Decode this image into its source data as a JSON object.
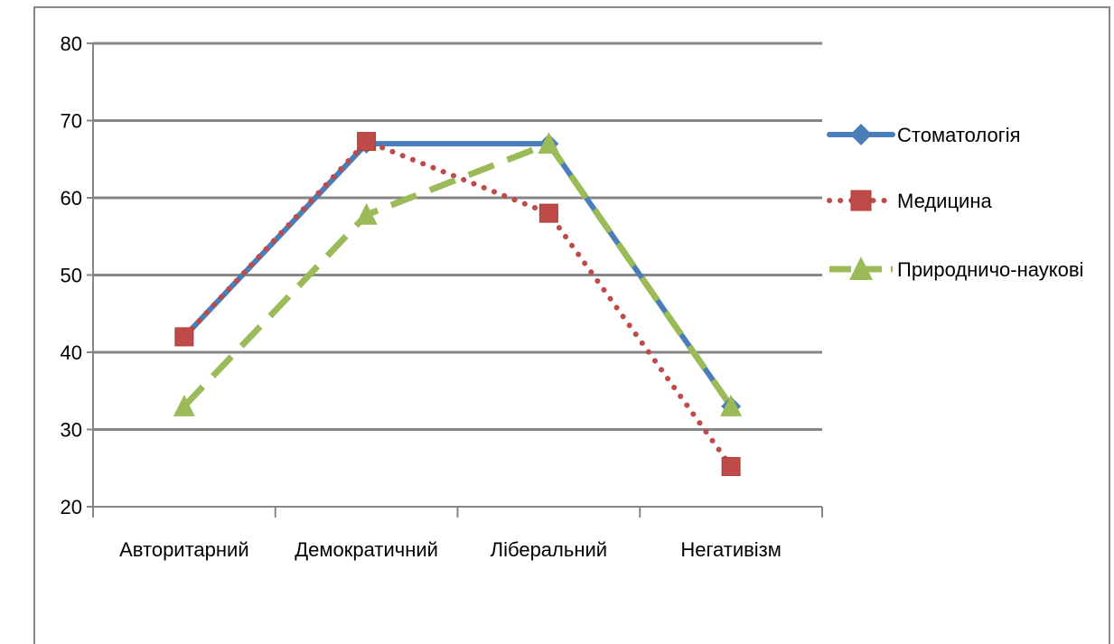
{
  "chart_data": {
    "type": "line",
    "title": "",
    "xlabel": "",
    "ylabel": "",
    "categories": [
      "Авторитарний",
      "Демократичний",
      "Ліберальний",
      "Негативізм"
    ],
    "ylim": [
      20,
      80
    ],
    "yticks": [
      20,
      30,
      40,
      50,
      60,
      70,
      80
    ],
    "grid": true,
    "legend_position": "right",
    "series": [
      {
        "name": "Стоматологія",
        "values": [
          42,
          67,
          67,
          33
        ],
        "color": "#4a7ebb",
        "line_style": "solid",
        "marker": "diamond"
      },
      {
        "name": "Медицина",
        "values": [
          42,
          67.3,
          58,
          25.2
        ],
        "color": "#be4b48",
        "line_style": "dotted",
        "marker": "square"
      },
      {
        "name": "Природничо-наукові",
        "values": [
          33,
          57.8,
          67,
          33
        ],
        "color": "#9bbb59",
        "line_style": "dashed",
        "marker": "triangle"
      }
    ]
  }
}
